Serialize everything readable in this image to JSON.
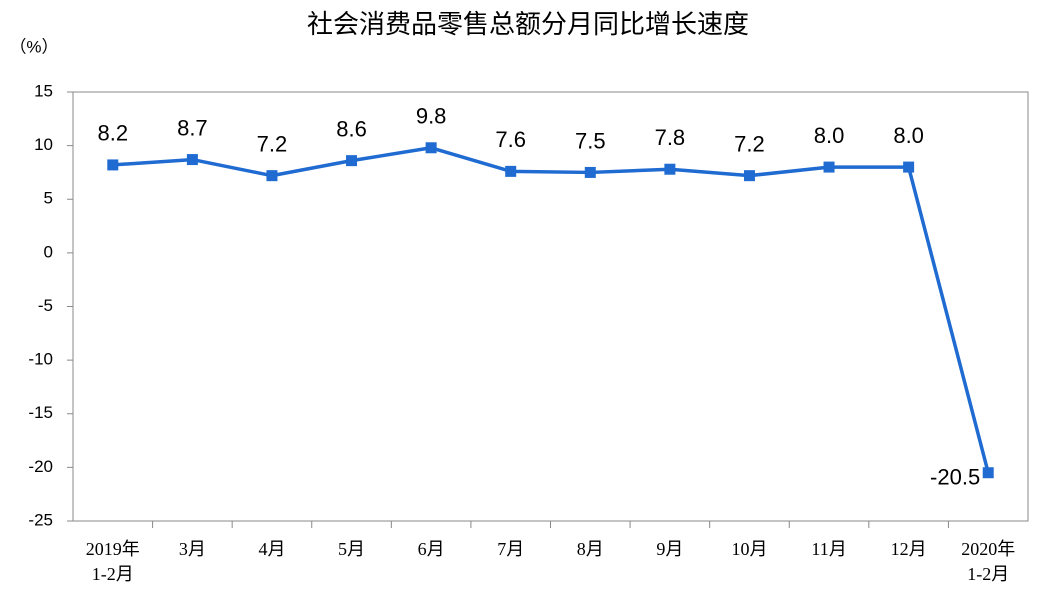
{
  "chart_data": {
    "type": "line",
    "title": "社会消费品零售总额分月同比增长速度",
    "y_unit": "（%）",
    "categories": [
      "2019年\n1-2月",
      "3月",
      "4月",
      "5月",
      "6月",
      "7月",
      "8月",
      "9月",
      "10月",
      "11月",
      "12月",
      "2020年\n1-2月"
    ],
    "values": [
      8.2,
      8.7,
      7.2,
      8.6,
      9.8,
      7.6,
      7.5,
      7.8,
      7.2,
      8.0,
      8.0,
      -20.5
    ],
    "value_labels": [
      "8.2",
      "8.7",
      "7.2",
      "8.6",
      "9.8",
      "7.6",
      "7.5",
      "7.8",
      "7.2",
      "8.0",
      "8.0",
      "-20.5"
    ],
    "color": "#1f6bd1",
    "ylim": [
      -25,
      15
    ],
    "yticks": [
      -25,
      -20,
      -15,
      -10,
      -5,
      0,
      5,
      10,
      15
    ],
    "grid": false
  }
}
